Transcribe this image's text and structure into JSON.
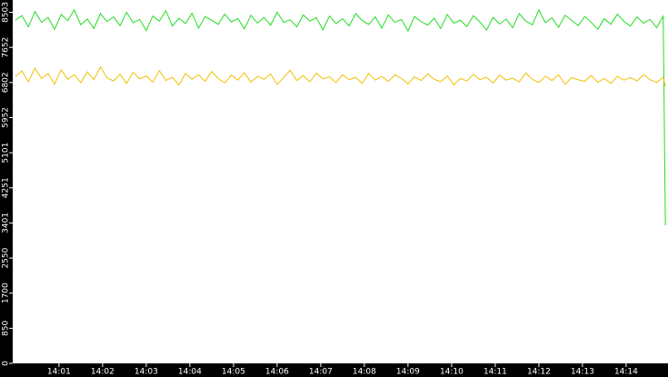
{
  "chart_data": {
    "type": "line",
    "x": [
      0,
      0.15,
      0.3,
      0.45,
      0.6,
      0.75,
      0.9,
      1.05,
      1.2,
      1.35,
      1.5,
      1.65,
      1.8,
      1.95,
      2.1,
      2.25,
      2.4,
      2.55,
      2.7,
      2.85,
      3,
      3.15,
      3.3,
      3.45,
      3.6,
      3.75,
      3.9,
      4.05,
      4.2,
      4.35,
      4.5,
      4.65,
      4.8,
      4.95,
      5.1,
      5.25,
      5.4,
      5.55,
      5.7,
      5.85,
      6,
      6.15,
      6.3,
      6.45,
      6.6,
      6.75,
      6.9,
      7.05,
      7.2,
      7.35,
      7.5,
      7.65,
      7.8,
      7.95,
      8.1,
      8.25,
      8.4,
      8.55,
      8.7,
      8.85,
      9,
      9.15,
      9.3,
      9.45,
      9.6,
      9.75,
      9.9,
      10.05,
      10.2,
      10.35,
      10.5,
      10.65,
      10.8,
      10.95,
      11.1,
      11.25,
      11.4,
      11.55,
      11.7,
      11.85,
      12,
      12.15,
      12.3,
      12.45,
      12.6,
      12.75,
      12.9,
      13.05,
      13.2,
      13.35,
      13.5,
      13.65,
      13.8,
      13.95,
      14.1,
      14.25,
      14.4,
      14.55,
      14.7,
      14.85,
      14.9
    ],
    "series": [
      {
        "color": "#22dd22",
        "values": [
          8310,
          8420,
          8150,
          8520,
          8260,
          8380,
          8090,
          8450,
          8300,
          8560,
          8200,
          8340,
          8110,
          8470,
          8280,
          8390,
          8180,
          8500,
          8250,
          8330,
          8060,
          8410,
          8290,
          8540,
          8170,
          8360,
          8230,
          8480,
          8120,
          8400,
          8310,
          8210,
          8460,
          8270,
          8350,
          8100,
          8430,
          8240,
          8380,
          8190,
          8500,
          8260,
          8320,
          8150,
          8440,
          8290,
          8370,
          8080,
          8410,
          8230,
          8350,
          8170,
          8470,
          8300,
          8210,
          8390,
          8120,
          8440,
          8260,
          8330,
          8050,
          8400,
          8280,
          8190,
          8360,
          8110,
          8450,
          8240,
          8310,
          8160,
          8420,
          8270,
          8070,
          8380,
          8220,
          8340,
          8130,
          8470,
          8290,
          8200,
          8560,
          8250,
          8370,
          8140,
          8430,
          8310,
          8180,
          8400,
          8260,
          8090,
          8350,
          8210,
          8460,
          8280,
          8170,
          8390,
          8240,
          8330,
          8130,
          8410,
          3340
        ]
      },
      {
        "color": "#f0c000",
        "values": [
          6950,
          7080,
          6820,
          7150,
          6900,
          7020,
          6760,
          7110,
          6880,
          6990,
          6800,
          7060,
          6870,
          7180,
          6920,
          6840,
          7000,
          6780,
          7050,
          6890,
          6960,
          6810,
          7090,
          6850,
          6930,
          6740,
          7020,
          6880,
          6990,
          6830,
          7070,
          6900,
          6790,
          6980,
          6860,
          7040,
          6810,
          6950,
          6880,
          7010,
          6760,
          6920,
          7100,
          6850,
          6970,
          6820,
          7030,
          6890,
          6940,
          6800,
          6990,
          6870,
          6930,
          6780,
          7020,
          6860,
          6950,
          6830,
          6990,
          6900,
          6770,
          6940,
          6850,
          7010,
          6880,
          6820,
          6960,
          6750,
          6900,
          6840,
          7000,
          6870,
          6930,
          6790,
          6980,
          6860,
          6910,
          6820,
          7030,
          6880,
          6800,
          6950,
          6850,
          6990,
          6760,
          6920,
          6870,
          6830,
          6970,
          6810,
          6900,
          6780,
          6950,
          6860,
          6920,
          6840,
          6990,
          6870,
          6800,
          6930,
          6700
        ]
      }
    ],
    "xlim": [
      -0.06,
      14.96
    ],
    "xticks": [
      {
        "value": 1,
        "label": "14:01"
      },
      {
        "value": 2,
        "label": "14:02"
      },
      {
        "value": 3,
        "label": "14:03"
      },
      {
        "value": 4,
        "label": "14:04"
      },
      {
        "value": 5,
        "label": "14:05"
      },
      {
        "value": 6,
        "label": "14:06"
      },
      {
        "value": 7,
        "label": "14:07"
      },
      {
        "value": 8,
        "label": "14:08"
      },
      {
        "value": 9,
        "label": "14:09"
      },
      {
        "value": 10,
        "label": "14:10"
      },
      {
        "value": 11,
        "label": "14:11"
      },
      {
        "value": 12,
        "label": "14:12"
      },
      {
        "value": 13,
        "label": "14:13"
      },
      {
        "value": 14,
        "label": "14:14"
      }
    ],
    "ylim": [
      0,
      8800
    ],
    "yticks": [
      0,
      850,
      1700,
      2550,
      3401,
      4251,
      5101,
      5952,
      6802,
      7652,
      8503
    ]
  }
}
